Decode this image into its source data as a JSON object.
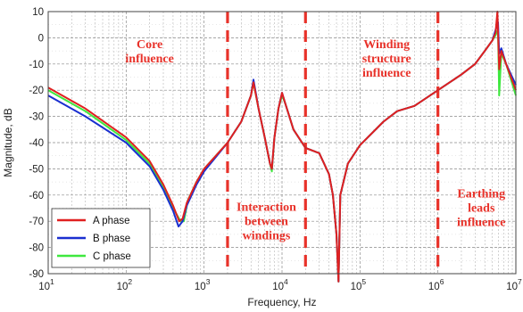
{
  "chart_data": {
    "type": "line",
    "xlabel": "Frequency, Hz",
    "ylabel": "Magnitude, dB",
    "xscale": "log",
    "xlim": [
      10,
      10000000
    ],
    "ylim": [
      -90,
      10
    ],
    "x_ticks": [
      {
        "value": 10,
        "base": "10",
        "exp": "1"
      },
      {
        "value": 100,
        "base": "10",
        "exp": "2"
      },
      {
        "value": 1000,
        "base": "10",
        "exp": "3"
      },
      {
        "value": 10000,
        "base": "10",
        "exp": "4"
      },
      {
        "value": 100000,
        "base": "10",
        "exp": "5"
      },
      {
        "value": 1000000,
        "base": "10",
        "exp": "6"
      },
      {
        "value": 10000000,
        "base": "10",
        "exp": "7"
      }
    ],
    "y_ticks": [
      10,
      0,
      -10,
      -20,
      -30,
      -40,
      -50,
      -60,
      -70,
      -80,
      -90
    ],
    "grid": true,
    "legend_position": "bottom-left",
    "series": [
      {
        "name": "A phase",
        "color": "#e02020",
        "points": [
          [
            10,
            -19
          ],
          [
            30,
            -27
          ],
          [
            100,
            -38
          ],
          [
            200,
            -47
          ],
          [
            300,
            -56
          ],
          [
            400,
            -64
          ],
          [
            480,
            -70
          ],
          [
            530,
            -69
          ],
          [
            600,
            -63
          ],
          [
            800,
            -55
          ],
          [
            1000,
            -50
          ],
          [
            2000,
            -40
          ],
          [
            3000,
            -32
          ],
          [
            4000,
            -22
          ],
          [
            4300,
            -17
          ],
          [
            5000,
            -27
          ],
          [
            6000,
            -38
          ],
          [
            7000,
            -48
          ],
          [
            7400,
            -50
          ],
          [
            8000,
            -38
          ],
          [
            9000,
            -27
          ],
          [
            10000,
            -21
          ],
          [
            11000,
            -25
          ],
          [
            14000,
            -35
          ],
          [
            20000,
            -42
          ],
          [
            30000,
            -44
          ],
          [
            40000,
            -52
          ],
          [
            45000,
            -60
          ],
          [
            50000,
            -75
          ],
          [
            53000,
            -93
          ],
          [
            56000,
            -60
          ],
          [
            70000,
            -48
          ],
          [
            100000,
            -41
          ],
          [
            200000,
            -32
          ],
          [
            300000,
            -28
          ],
          [
            500000,
            -26
          ],
          [
            1000000,
            -20
          ],
          [
            2000000,
            -14
          ],
          [
            3000000,
            -10
          ],
          [
            4000000,
            -5
          ],
          [
            5000000,
            -1
          ],
          [
            5500000,
            2
          ],
          [
            5800000,
            10
          ],
          [
            6100000,
            -12
          ],
          [
            6500000,
            -5
          ],
          [
            7500000,
            -10
          ],
          [
            10000000,
            -20
          ]
        ]
      },
      {
        "name": "B phase",
        "color": "#1a2fd0",
        "points": [
          [
            10,
            -22
          ],
          [
            30,
            -30
          ],
          [
            100,
            -40
          ],
          [
            200,
            -49
          ],
          [
            300,
            -58
          ],
          [
            400,
            -66
          ],
          [
            470,
            -72
          ],
          [
            530,
            -70
          ],
          [
            600,
            -64
          ],
          [
            800,
            -56
          ],
          [
            1000,
            -51
          ],
          [
            2000,
            -40
          ],
          [
            3000,
            -32
          ],
          [
            4000,
            -22
          ],
          [
            4300,
            -16
          ],
          [
            5000,
            -27
          ],
          [
            6000,
            -38
          ],
          [
            7000,
            -48
          ],
          [
            7400,
            -50
          ],
          [
            8000,
            -38
          ],
          [
            9000,
            -27
          ],
          [
            10000,
            -21
          ],
          [
            11000,
            -25
          ],
          [
            14000,
            -35
          ],
          [
            20000,
            -42
          ],
          [
            30000,
            -44
          ],
          [
            40000,
            -52
          ],
          [
            45000,
            -60
          ],
          [
            50000,
            -75
          ],
          [
            53000,
            -93
          ],
          [
            56000,
            -60
          ],
          [
            70000,
            -48
          ],
          [
            100000,
            -41
          ],
          [
            200000,
            -32
          ],
          [
            300000,
            -28
          ],
          [
            500000,
            -26
          ],
          [
            1000000,
            -20
          ],
          [
            2000000,
            -14
          ],
          [
            3000000,
            -10
          ],
          [
            4000000,
            -5
          ],
          [
            5000000,
            -1
          ],
          [
            5500000,
            3
          ],
          [
            5900000,
            6
          ],
          [
            6100000,
            -6
          ],
          [
            6500000,
            -4
          ],
          [
            7500000,
            -10
          ],
          [
            10000000,
            -18
          ]
        ]
      },
      {
        "name": "C phase",
        "color": "#3ee83e",
        "points": [
          [
            10,
            -20
          ],
          [
            30,
            -28
          ],
          [
            100,
            -39
          ],
          [
            200,
            -48
          ],
          [
            300,
            -57
          ],
          [
            400,
            -65
          ],
          [
            500,
            -70
          ],
          [
            550,
            -70
          ],
          [
            620,
            -62
          ],
          [
            800,
            -55
          ],
          [
            1000,
            -50
          ],
          [
            2000,
            -40
          ],
          [
            3000,
            -32
          ],
          [
            4000,
            -22
          ],
          [
            4300,
            -17
          ],
          [
            5000,
            -27
          ],
          [
            6000,
            -38
          ],
          [
            7000,
            -48
          ],
          [
            7400,
            -51
          ],
          [
            8000,
            -38
          ],
          [
            9000,
            -27
          ],
          [
            10000,
            -22
          ],
          [
            11000,
            -25
          ],
          [
            14000,
            -35
          ],
          [
            20000,
            -42
          ],
          [
            30000,
            -44
          ],
          [
            40000,
            -52
          ],
          [
            45000,
            -60
          ],
          [
            50000,
            -75
          ],
          [
            53000,
            -93
          ],
          [
            56000,
            -60
          ],
          [
            70000,
            -48
          ],
          [
            100000,
            -41
          ],
          [
            200000,
            -32
          ],
          [
            300000,
            -28
          ],
          [
            500000,
            -26
          ],
          [
            1000000,
            -20
          ],
          [
            2000000,
            -14
          ],
          [
            3000000,
            -10
          ],
          [
            4000000,
            -5
          ],
          [
            5000000,
            -1
          ],
          [
            5500000,
            1
          ],
          [
            5900000,
            3
          ],
          [
            6100000,
            -22
          ],
          [
            6500000,
            -6
          ],
          [
            7500000,
            -10
          ],
          [
            10000000,
            -22
          ]
        ]
      }
    ],
    "dividers": {
      "x": [
        2000,
        20000,
        1000000
      ],
      "color": "#e8322a",
      "style": "dashed"
    },
    "annotations": [
      {
        "lines": [
          "Core",
          "influence"
        ],
        "x": 200,
        "y": -4
      },
      {
        "lines": [
          "Interaction",
          "between",
          "windings"
        ],
        "x": 6300,
        "y": -66
      },
      {
        "lines": [
          "Winding",
          "structure",
          "influence"
        ],
        "x": 220000,
        "y": -4
      },
      {
        "lines": [
          "Earthing",
          "leads",
          "influence"
        ],
        "x": 3600000,
        "y": -61
      }
    ]
  }
}
